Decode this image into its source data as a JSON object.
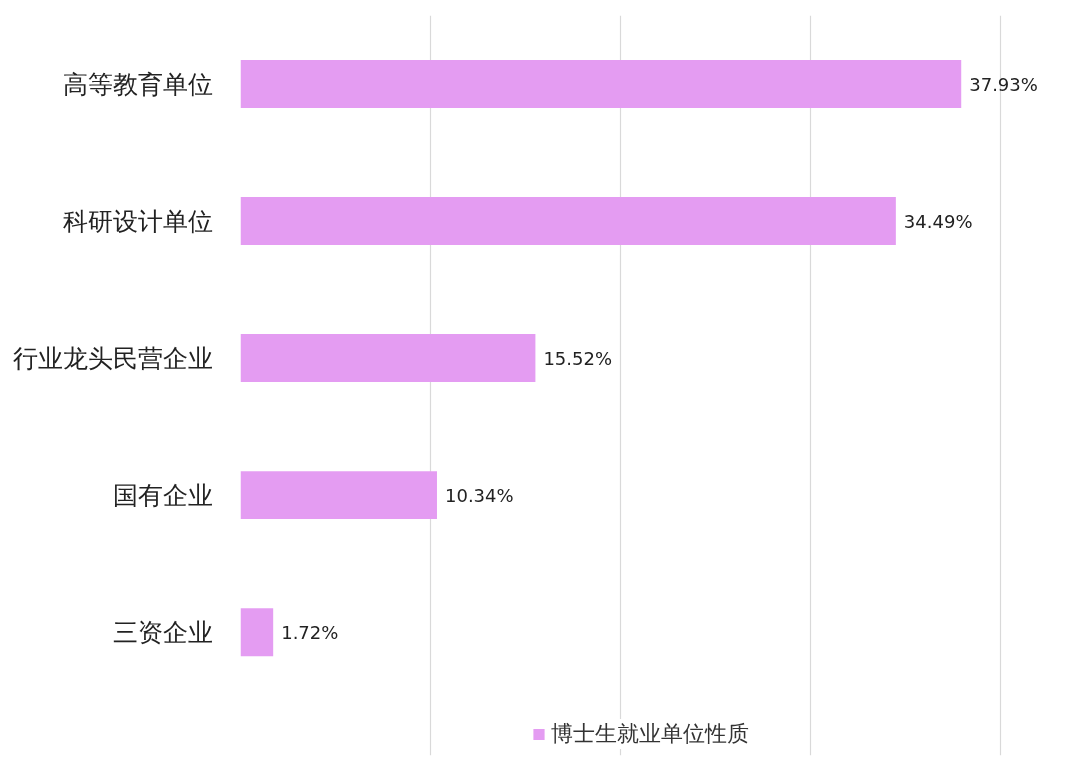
{
  "chart_data": {
    "type": "bar",
    "orientation": "horizontal",
    "categories": [
      "高等教育单位",
      "科研设计单位",
      "行业龙头民营企业",
      "国有企业",
      "三资企业"
    ],
    "series": [
      {
        "name": "博士生就业单位性质",
        "color": "#e49cf2",
        "values": [
          37.93,
          34.49,
          15.52,
          10.34,
          1.72
        ],
        "value_labels": [
          "37.93%",
          "34.49%",
          "15.52%",
          "10.34%",
          "1.72%"
        ]
      }
    ],
    "tick_labels": "y",
    "grid": "x",
    "legend": "bottom"
  }
}
